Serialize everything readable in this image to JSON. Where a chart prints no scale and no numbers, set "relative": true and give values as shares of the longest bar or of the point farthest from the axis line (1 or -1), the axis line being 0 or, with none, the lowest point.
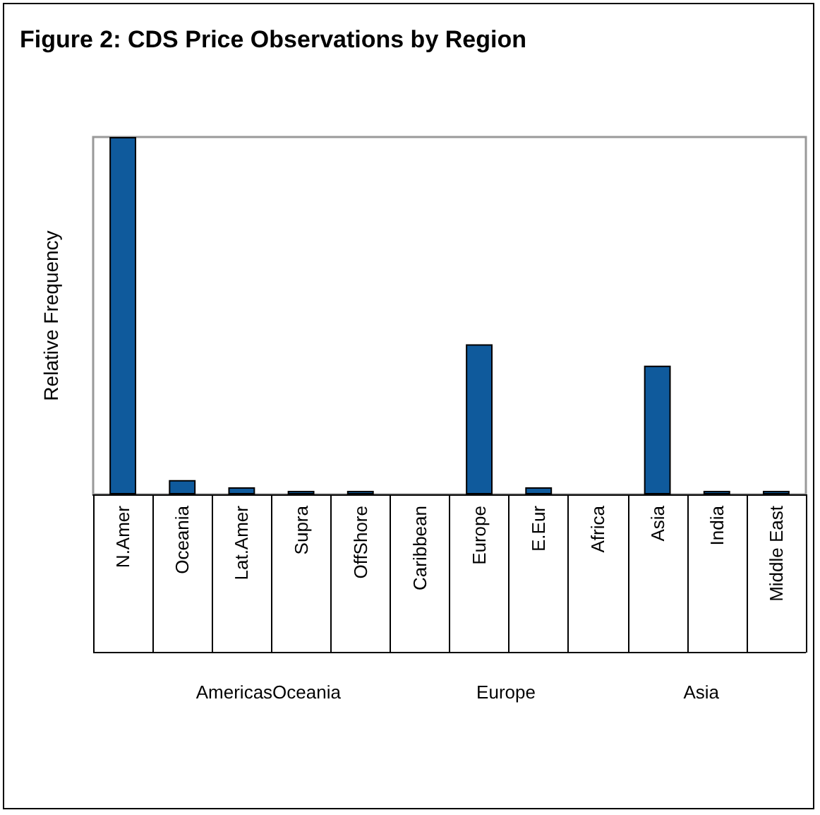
{
  "chart_data": {
    "type": "bar",
    "title": "Figure 2: CDS Price Observations by Region",
    "ylabel": "Relative Frequency",
    "relative": true,
    "categories": [
      "N.Amer",
      "Oceania",
      "Lat.Amer",
      "Supra",
      "OffShore",
      "Caribbean",
      "Europe",
      "E.Eur",
      "Africa",
      "Asia",
      "India",
      "Middle East"
    ],
    "values": [
      1,
      0.04,
      0.02,
      0.01,
      0.01,
      0,
      0.42,
      0.02,
      0,
      0.36,
      0.01,
      0.01
    ],
    "color": "#0f5a9c",
    "annotations": [
      "AmericasOceania",
      "Europe",
      "Asia"
    ],
    "grid": false
  }
}
